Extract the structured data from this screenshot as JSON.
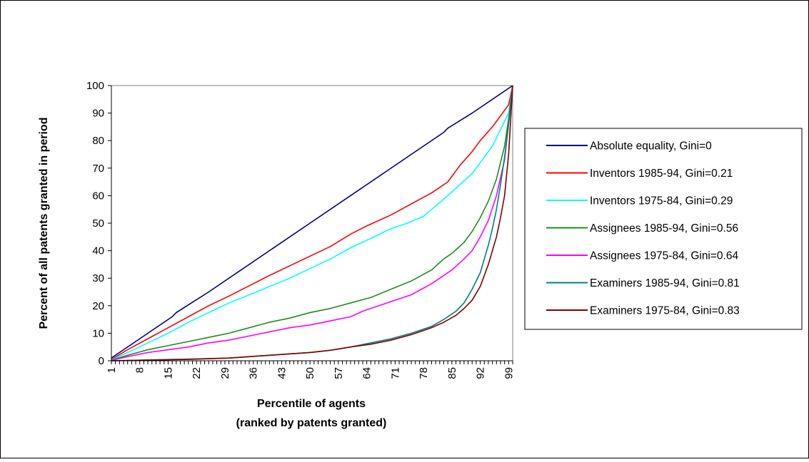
{
  "chart_data": {
    "type": "line",
    "xlabel_line1": "Percentile of agents",
    "xlabel_line2": "(ranked by patents granted)",
    "ylabel": "Percent of all patents granted in period",
    "xlim": [
      1,
      100
    ],
    "ylim": [
      0,
      100
    ],
    "y_ticks": [
      0,
      10,
      20,
      30,
      40,
      50,
      60,
      70,
      80,
      90,
      100
    ],
    "x_tick_labels": [
      "1",
      "8",
      "15",
      "22",
      "29",
      "36",
      "43",
      "50",
      "57",
      "64",
      "71",
      "78",
      "85",
      "92",
      "99"
    ],
    "grid": false,
    "legend_position": "right",
    "series": [
      {
        "name": "Absolute equality, Gini=0",
        "color": "#000080",
        "points": [
          [
            1,
            1
          ],
          [
            10,
            10
          ],
          [
            16,
            16
          ],
          [
            17,
            17.5
          ],
          [
            25,
            25
          ],
          [
            50,
            50
          ],
          [
            75,
            75
          ],
          [
            83,
            83
          ],
          [
            84,
            84.5
          ],
          [
            90,
            90
          ],
          [
            100,
            100
          ]
        ]
      },
      {
        "name": "Inventors 1985-94, Gini=0.21",
        "color": "#ff0000",
        "points": [
          [
            1,
            0.5
          ],
          [
            5,
            4
          ],
          [
            10,
            8
          ],
          [
            15,
            12
          ],
          [
            20,
            16
          ],
          [
            25,
            20
          ],
          [
            30,
            23.5
          ],
          [
            36,
            28
          ],
          [
            40,
            31
          ],
          [
            45,
            34.5
          ],
          [
            50,
            38
          ],
          [
            55,
            41.5
          ],
          [
            60,
            46
          ],
          [
            64,
            49
          ],
          [
            70,
            53
          ],
          [
            75,
            57
          ],
          [
            80,
            61
          ],
          [
            84,
            65
          ],
          [
            85,
            67
          ],
          [
            87,
            71
          ],
          [
            90,
            76
          ],
          [
            92,
            80
          ],
          [
            95,
            85
          ],
          [
            97,
            89
          ],
          [
            99,
            93
          ],
          [
            100,
            100
          ]
        ]
      },
      {
        "name": "Inventors 1975-84, Gini=0.29",
        "color": "#00ffff",
        "points": [
          [
            1,
            0.3
          ],
          [
            5,
            3
          ],
          [
            10,
            6.5
          ],
          [
            15,
            10
          ],
          [
            20,
            14
          ],
          [
            25,
            17.5
          ],
          [
            30,
            21
          ],
          [
            36,
            24.5
          ],
          [
            40,
            27
          ],
          [
            45,
            30
          ],
          [
            50,
            33.5
          ],
          [
            55,
            37
          ],
          [
            60,
            41
          ],
          [
            65,
            44.5
          ],
          [
            70,
            48
          ],
          [
            74,
            50
          ],
          [
            78,
            52.5
          ],
          [
            80,
            55
          ],
          [
            84,
            60
          ],
          [
            87,
            64
          ],
          [
            90,
            68
          ],
          [
            92,
            72
          ],
          [
            95,
            78
          ],
          [
            97,
            84
          ],
          [
            99,
            90
          ],
          [
            100,
            100
          ]
        ]
      },
      {
        "name": "Assignees 1985-94, Gini=0.56",
        "color": "#228b22",
        "points": [
          [
            1,
            0.2
          ],
          [
            5,
            2
          ],
          [
            10,
            4
          ],
          [
            15,
            5.5
          ],
          [
            20,
            7
          ],
          [
            25,
            8.5
          ],
          [
            30,
            10
          ],
          [
            35,
            12
          ],
          [
            40,
            14
          ],
          [
            45,
            15.5
          ],
          [
            50,
            17.5
          ],
          [
            55,
            19
          ],
          [
            60,
            21
          ],
          [
            65,
            23
          ],
          [
            70,
            26
          ],
          [
            75,
            29
          ],
          [
            80,
            33
          ],
          [
            83,
            37
          ],
          [
            85,
            39
          ],
          [
            88,
            43
          ],
          [
            90,
            47
          ],
          [
            92,
            52
          ],
          [
            94,
            58
          ],
          [
            96,
            66
          ],
          [
            98,
            78
          ],
          [
            99,
            88
          ],
          [
            100,
            100
          ]
        ]
      },
      {
        "name": "Assignees 1975-84, Gini=0.64",
        "color": "#ff00ff",
        "points": [
          [
            1,
            0.1
          ],
          [
            5,
            1.5
          ],
          [
            10,
            3
          ],
          [
            15,
            4
          ],
          [
            20,
            5
          ],
          [
            25,
            6.5
          ],
          [
            30,
            7.5
          ],
          [
            35,
            9
          ],
          [
            40,
            10.5
          ],
          [
            45,
            12
          ],
          [
            50,
            13
          ],
          [
            55,
            14.5
          ],
          [
            60,
            16
          ],
          [
            63,
            18
          ],
          [
            67,
            20
          ],
          [
            70,
            21.5
          ],
          [
            75,
            24
          ],
          [
            80,
            28
          ],
          [
            85,
            33
          ],
          [
            88,
            37
          ],
          [
            90,
            40
          ],
          [
            92,
            45
          ],
          [
            94,
            51
          ],
          [
            96,
            60
          ],
          [
            98,
            73
          ],
          [
            99,
            86
          ],
          [
            100,
            100
          ]
        ]
      },
      {
        "name": "Examiners 1985-94, Gini=0.81",
        "color": "#008080",
        "points": [
          [
            1,
            0
          ],
          [
            10,
            0.3
          ],
          [
            20,
            0.6
          ],
          [
            30,
            1
          ],
          [
            40,
            2
          ],
          [
            50,
            3
          ],
          [
            55,
            3.8
          ],
          [
            60,
            5
          ],
          [
            65,
            6.5
          ],
          [
            70,
            8
          ],
          [
            75,
            10
          ],
          [
            80,
            12.5
          ],
          [
            83,
            15
          ],
          [
            86,
            18
          ],
          [
            88,
            21
          ],
          [
            90,
            26
          ],
          [
            92,
            32
          ],
          [
            93,
            37
          ],
          [
            94,
            42
          ],
          [
            95,
            48
          ],
          [
            96,
            55
          ],
          [
            97,
            64
          ],
          [
            98,
            74
          ],
          [
            99,
            86
          ],
          [
            100,
            100
          ]
        ]
      },
      {
        "name": "Examiners 1975-84, Gini=0.83",
        "color": "#800000",
        "points": [
          [
            1,
            0
          ],
          [
            10,
            0.2
          ],
          [
            20,
            0.5
          ],
          [
            30,
            1
          ],
          [
            40,
            2
          ],
          [
            50,
            3
          ],
          [
            55,
            3.8
          ],
          [
            60,
            5
          ],
          [
            65,
            6
          ],
          [
            70,
            7.5
          ],
          [
            75,
            9.5
          ],
          [
            80,
            12
          ],
          [
            83,
            14
          ],
          [
            86,
            16.5
          ],
          [
            88,
            19
          ],
          [
            90,
            22
          ],
          [
            92,
            27
          ],
          [
            93,
            31
          ],
          [
            94,
            35
          ],
          [
            95,
            40
          ],
          [
            96,
            45
          ],
          [
            97,
            52
          ],
          [
            98,
            60
          ],
          [
            99,
            75
          ],
          [
            100,
            100
          ]
        ]
      }
    ]
  }
}
